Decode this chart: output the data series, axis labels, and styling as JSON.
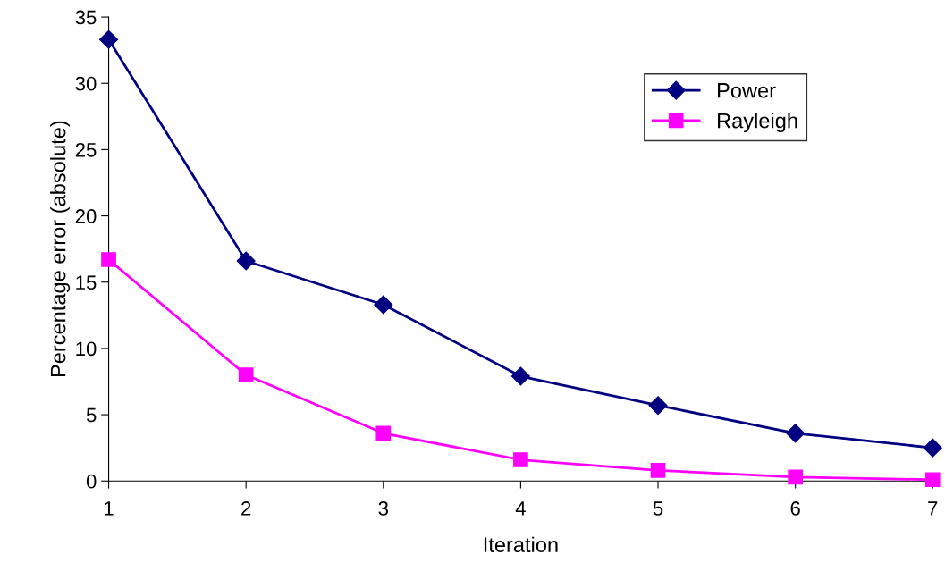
{
  "chart_data": {
    "type": "line",
    "xlabel": "Iteration",
    "ylabel": "Percentage error (absolute)",
    "x": [
      1,
      2,
      3,
      4,
      5,
      6,
      7
    ],
    "series": [
      {
        "name": "Power",
        "color": "#000080",
        "marker": "diamond",
        "values": [
          33.3,
          16.6,
          13.3,
          7.9,
          5.7,
          3.6,
          2.5
        ]
      },
      {
        "name": "Rayleigh",
        "color": "#ff00ff",
        "marker": "square",
        "values": [
          16.7,
          8.0,
          3.6,
          1.6,
          0.8,
          0.3,
          0.1
        ]
      }
    ],
    "xlim": [
      1,
      7
    ],
    "xticks": [
      1,
      2,
      3,
      4,
      5,
      6,
      7
    ],
    "ylim": [
      0,
      35
    ],
    "yticks": [
      0,
      5,
      10,
      15,
      20,
      25,
      30,
      35
    ],
    "grid": false,
    "legend": "top right",
    "line_style": "solid"
  }
}
